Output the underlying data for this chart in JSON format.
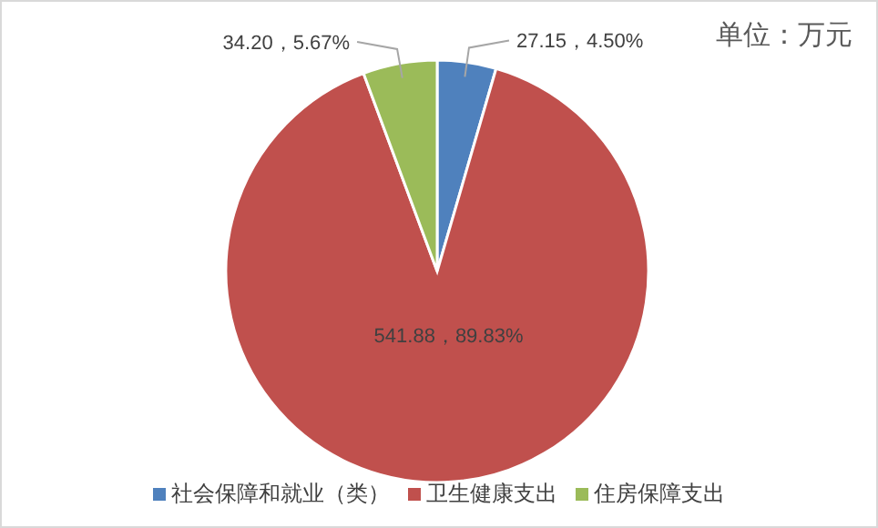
{
  "chart_data": {
    "type": "pie",
    "categories": [
      "社会保障和就业（类）",
      "卫生健康支出",
      "住房保障支出"
    ],
    "values": [
      27.15,
      541.88,
      34.2
    ],
    "colors": [
      "#4f81bd",
      "#c0504d",
      "#9bbb59"
    ],
    "value_labels": [
      "27.15，4.50%",
      "541.88，89.83%",
      "34.20，5.67%"
    ],
    "legend": "bottom",
    "annotations": [
      "单位：万元"
    ]
  }
}
